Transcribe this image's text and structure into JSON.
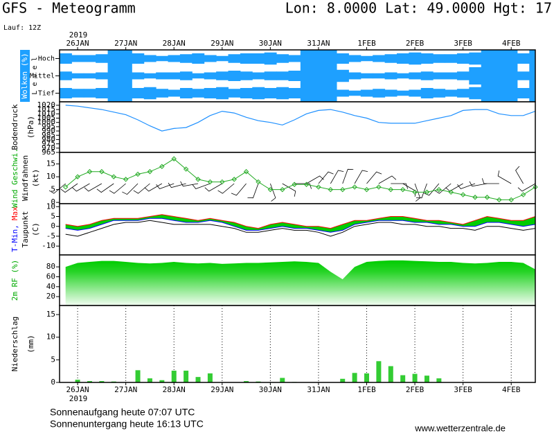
{
  "header": {
    "title": "GFS - Meteogramm",
    "location": "Lon: 8.0000 Lat: 49.0000 Hgt: 17",
    "run": "Lauf: 12Z",
    "year": "2019"
  },
  "footer": {
    "sunrise": "Sonnenaufgang heute 07:07 UTC",
    "sunset": "Sonnenuntergang heute 16:13 UTC",
    "source": "www.wetterzentrale.de"
  },
  "chart_data": {
    "type": "meteogram",
    "x": [
      -6,
      0,
      6,
      12,
      18,
      24,
      30,
      36,
      42,
      48,
      54,
      60,
      66,
      72,
      78,
      84,
      90,
      96,
      102,
      108,
      114,
      120,
      126,
      132,
      138,
      144,
      150,
      156,
      162,
      168,
      174,
      180,
      186,
      192,
      198,
      204,
      210,
      216,
      222,
      228
    ],
    "xlim": [
      -9,
      228
    ],
    "xticks": [
      {
        "value": 0,
        "label": "26JAN"
      },
      {
        "value": 24,
        "label": "27JAN"
      },
      {
        "value": 48,
        "label": "28JAN"
      },
      {
        "value": 72,
        "label": "29JAN"
      },
      {
        "value": 96,
        "label": "30JAN"
      },
      {
        "value": 120,
        "label": "31JAN"
      },
      {
        "value": 144,
        "label": "1FEB"
      },
      {
        "value": 168,
        "label": "2FEB"
      },
      {
        "value": 192,
        "label": "3FEB"
      },
      {
        "value": 216,
        "label": "4FEB"
      }
    ],
    "panels": [
      {
        "type": "clouds",
        "ylabel": [
          [
            {
              "text": "Wolken (%)",
              "color": "#ffffff"
            }
          ]
        ],
        "level_label": "L e v e l",
        "color": "#1ea0ff",
        "series": [
          {
            "name": "Hoch",
            "values": [
              60,
              40,
              40,
              50,
              100,
              100,
              60,
              40,
              30,
              40,
              50,
              60,
              40,
              30,
              50,
              60,
              60,
              70,
              50,
              40,
              100,
              100,
              100,
              60,
              40,
              30,
              40,
              50,
              60,
              70,
              60,
              50,
              50,
              60,
              70,
              100,
              100,
              100,
              60,
              100
            ]
          },
          {
            "name": "Mittel",
            "values": [
              50,
              30,
              30,
              40,
              100,
              100,
              40,
              30,
              40,
              40,
              50,
              30,
              40,
              50,
              60,
              50,
              40,
              50,
              50,
              60,
              100,
              100,
              100,
              70,
              40,
              30,
              30,
              40,
              30,
              40,
              50,
              40,
              40,
              50,
              100,
              100,
              100,
              100,
              50,
              100
            ]
          },
          {
            "name": "Tief",
            "values": [
              60,
              50,
              50,
              60,
              100,
              100,
              60,
              70,
              50,
              40,
              60,
              50,
              60,
              70,
              50,
              60,
              70,
              60,
              70,
              60,
              100,
              100,
              100,
              40,
              30,
              40,
              50,
              40,
              30,
              40,
              60,
              50,
              40,
              50,
              70,
              100,
              100,
              100,
              60,
              100
            ]
          }
        ]
      },
      {
        "type": "line",
        "ylabel": [
          [
            {
              "text": "Bodendruck",
              "color": "#000000"
            }
          ],
          [
            {
              "text": "(hPa)",
              "color": "#000000"
            }
          ]
        ],
        "ylim": [
          965,
          1024
        ],
        "yticks": [
          965,
          970,
          975,
          980,
          985,
          990,
          995,
          1000,
          1005,
          1010,
          1015,
          1020
        ],
        "color": "#1e90ff",
        "values": [
          1020,
          1019,
          1017,
          1015,
          1012,
          1009,
          1003,
          996,
          990,
          993,
          994,
          1000,
          1008,
          1013,
          1011,
          1006,
          1002,
          1000,
          997,
          1003,
          1010,
          1014,
          1015,
          1012,
          1008,
          1005,
          1000,
          999,
          999,
          999,
          1002,
          1005,
          1008,
          1014,
          1015,
          1015,
          1010,
          1008,
          1008,
          1013
        ]
      },
      {
        "type": "wind",
        "ylabel": [
          [
            {
              "text": "Wind Geschwi.",
              "color": "#00aa00"
            }
          ],
          [
            {
              "text": "Windfahnen",
              "color": "#000000"
            }
          ],
          [
            {
              "text": "(kt)",
              "color": "#000000"
            }
          ]
        ],
        "ylim": [
          -0.5,
          19.5
        ],
        "yticks": [
          0,
          5,
          10,
          15
        ],
        "color": "#22aa22",
        "values": [
          6,
          10,
          12,
          12,
          10,
          9,
          11,
          12,
          14,
          17,
          13,
          9,
          8,
          8,
          9,
          12,
          8,
          5,
          5,
          7,
          7,
          6,
          5,
          5,
          6,
          5,
          6,
          5,
          5,
          4,
          4,
          5,
          4,
          3,
          2,
          2,
          1,
          1,
          3,
          6
        ],
        "directions": [
          230,
          235,
          240,
          240,
          235,
          230,
          225,
          230,
          240,
          250,
          255,
          260,
          250,
          240,
          230,
          220,
          200,
          160,
          120,
          90,
          60,
          40,
          30,
          20,
          30,
          40,
          60,
          90,
          120,
          160,
          200,
          220,
          230,
          240,
          250,
          260,
          270,
          300,
          330,
          240
        ]
      },
      {
        "type": "temperature",
        "ylabel": [
          [
            {
              "text": "T-Min,",
              "color": "#0000ff"
            },
            {
              "text": "Max",
              "color": "#ff0000"
            }
          ],
          [
            {
              "text": "Taupunkt",
              "color": "#000000"
            }
          ],
          [
            {
              "text": "(C)",
              "color": "#000000"
            }
          ]
        ],
        "ylim": [
          -14.5,
          11.5
        ],
        "yticks": [
          -10,
          -5,
          0,
          5,
          10
        ],
        "fill": "#00cc00",
        "series": [
          {
            "color": "#ff0000",
            "values": [
              1,
              0,
              1,
              3,
              4,
              4,
              4,
              5,
              6,
              5,
              4,
              3,
              4,
              3,
              2,
              0,
              -1,
              1,
              2,
              1,
              0,
              0,
              -1,
              1,
              3,
              3,
              4,
              5,
              5,
              4,
              3,
              3,
              2,
              1,
              3,
              5,
              4,
              3,
              3,
              5
            ]
          },
          {
            "color": "#0000ff",
            "values": [
              -1,
              -2,
              -1,
              1,
              3,
              3,
              3,
              4,
              4,
              3,
              2,
              2,
              3,
              2,
              0,
              -2,
              -2,
              -1,
              0,
              -1,
              -1,
              -2,
              -3,
              -2,
              1,
              2,
              3,
              3,
              3,
              2,
              2,
              1,
              1,
              0,
              0,
              2,
              2,
              1,
              0,
              1
            ]
          },
          {
            "color": "#000000",
            "values": [
              -4,
              -5,
              -3,
              -1,
              1,
              2,
              2,
              3,
              2,
              1,
              1,
              1,
              1,
              0,
              -1,
              -3,
              -3,
              -2,
              -1,
              -2,
              -2,
              -3,
              -5,
              -3,
              0,
              1,
              2,
              2,
              1,
              1,
              0,
              0,
              -1,
              -1,
              -2,
              0,
              0,
              -1,
              -2,
              -1
            ]
          }
        ]
      },
      {
        "type": "area",
        "ylabel": [
          [
            {
              "text": "2m RF (%)",
              "color": "#00aa00"
            }
          ]
        ],
        "ylim": [
          2,
          104
        ],
        "yticks": [
          20,
          40,
          60,
          80
        ],
        "color": "#00cc00",
        "values": [
          80,
          88,
          90,
          92,
          92,
          90,
          88,
          87,
          88,
          90,
          88,
          87,
          88,
          86,
          87,
          88,
          88,
          89,
          90,
          91,
          90,
          88,
          70,
          55,
          80,
          90,
          92,
          93,
          93,
          92,
          91,
          90,
          90,
          88,
          87,
          88,
          90,
          90,
          88,
          75
        ]
      },
      {
        "type": "bar",
        "ylabel": [
          [
            {
              "text": "Niederschlag",
              "color": "#000000"
            }
          ],
          [
            {
              "text": "(mm)",
              "color": "#000000"
            }
          ]
        ],
        "ylim": [
          0,
          17
        ],
        "yticks": [
          0,
          5,
          10,
          15
        ],
        "color": "#33cc33",
        "values": [
          0,
          0.6,
          0.3,
          0.3,
          0.2,
          0,
          2.7,
          0.9,
          0.5,
          2.6,
          2.6,
          1.2,
          2.0,
          0,
          0,
          0.3,
          0.2,
          0,
          1.0,
          0.1,
          0,
          0,
          0,
          0.8,
          2.1,
          2.0,
          4.7,
          3.6,
          1.6,
          1.9,
          1.5,
          0.9,
          0,
          0,
          0,
          0,
          0,
          0,
          0,
          0
        ]
      }
    ]
  }
}
